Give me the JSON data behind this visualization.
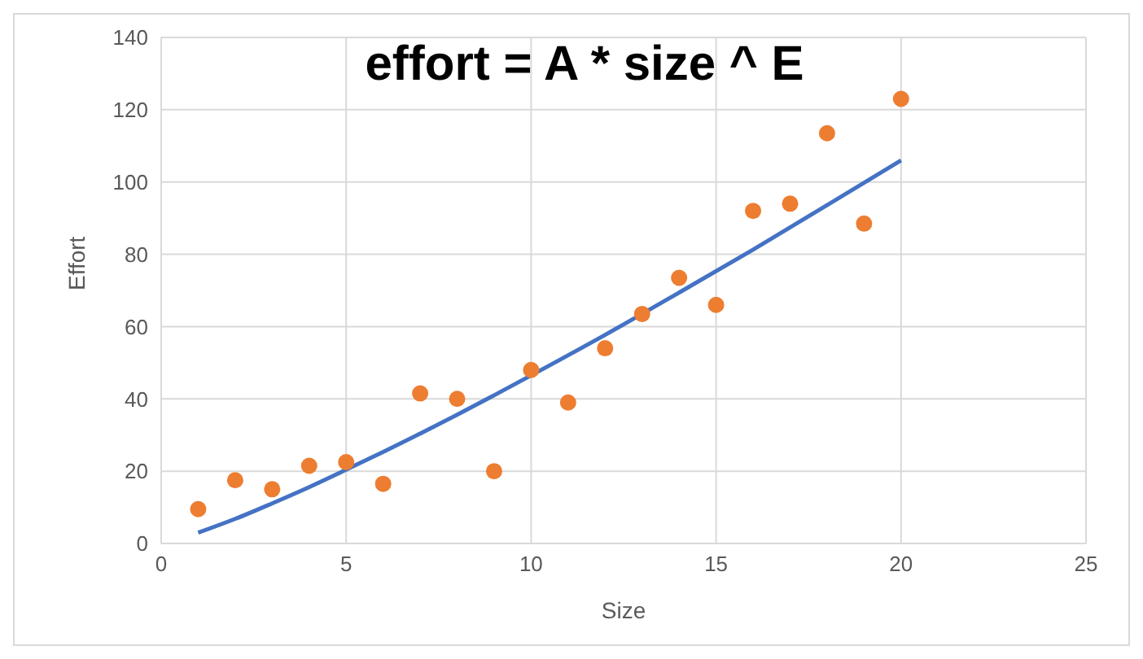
{
  "chart_data": {
    "type": "scatter",
    "title": "effort = A * size ^ E",
    "xlabel": "Size",
    "ylabel": "Effort",
    "xlim": [
      0,
      25
    ],
    "xticks": [
      0,
      5,
      10,
      15,
      20,
      25
    ],
    "ylim": [
      0,
      140
    ],
    "yticks": [
      0,
      20,
      40,
      60,
      80,
      100,
      120,
      140
    ],
    "grid": true,
    "legend": false,
    "marker": "circle",
    "series": [
      {
        "color": "#ed7d31",
        "x": [
          1,
          2,
          3,
          4,
          5,
          6,
          7,
          8,
          9,
          10,
          11,
          12,
          13,
          14,
          15,
          16,
          17,
          18,
          19,
          20
        ],
        "values": [
          9.5,
          17.5,
          15,
          21.5,
          22.5,
          16.5,
          41.5,
          40,
          20,
          48,
          39,
          54,
          63.5,
          73.5,
          66,
          92,
          94,
          113.5,
          88.5,
          123
        ]
      },
      {
        "type": "line",
        "color": "#4472c4",
        "marker": "none",
        "line_style": "solid",
        "x": [
          1,
          2,
          3,
          4,
          5,
          6,
          7,
          8,
          9,
          10,
          12,
          14,
          16,
          18,
          20
        ],
        "values": [
          3,
          6.8,
          11.1,
          15.6,
          20.4,
          25.3,
          30.4,
          35.6,
          41,
          46.5,
          57.7,
          69.4,
          81.3,
          93.6,
          106
        ]
      }
    ]
  }
}
